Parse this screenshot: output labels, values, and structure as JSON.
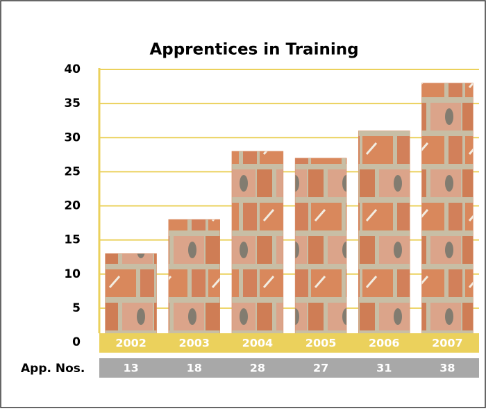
{
  "chart_data": {
    "type": "bar",
    "title": "Apprentices in Training",
    "categories": [
      "2002",
      "2003",
      "2004",
      "2005",
      "2006",
      "2007"
    ],
    "values": [
      13,
      18,
      28,
      27,
      31,
      38
    ],
    "table_label": "App. Nos.",
    "color": "#d9885c",
    "ylim": [
      0,
      40
    ],
    "yticks": [
      0,
      5,
      10,
      15,
      20,
      25,
      30,
      35,
      40
    ],
    "grid": true
  }
}
